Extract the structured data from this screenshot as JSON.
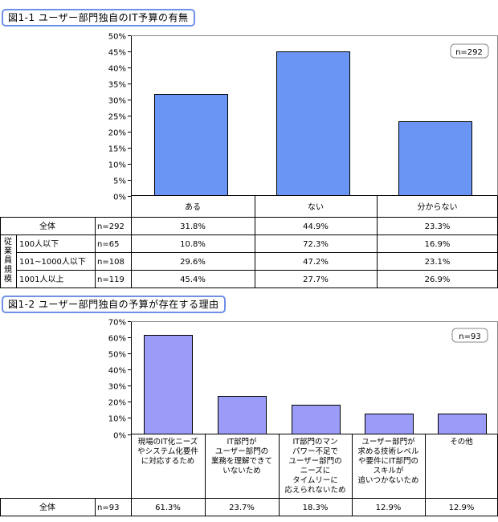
{
  "chart1": {
    "title": "図1-1 ユーザー部門独自のIT予算の有無",
    "n_label": "n=292",
    "yticks": [
      "0%",
      "5%",
      "10%",
      "15%",
      "20%",
      "25%",
      "30%",
      "35%",
      "40%",
      "45%",
      "50%"
    ],
    "table": {
      "group_label": "従業員規模",
      "rows": [
        {
          "label": "全体",
          "n": "n=292",
          "values": [
            "31.8%",
            "44.9%",
            "23.3%"
          ]
        },
        {
          "label": "100人以下",
          "n": "n=65",
          "values": [
            "10.8%",
            "72.3%",
            "16.9%"
          ]
        },
        {
          "label": "101~1000人以下",
          "n": "n=108",
          "values": [
            "29.6%",
            "47.2%",
            "23.1%"
          ]
        },
        {
          "label": "1001人以上",
          "n": "n=119",
          "values": [
            "45.4%",
            "27.7%",
            "26.9%"
          ]
        }
      ]
    },
    "colors": {
      "bar": "#6a95f4",
      "title_border": "#6f8fe8"
    }
  },
  "chart2": {
    "title": "図1-2 ユーザー部門独自の予算が存在する理由",
    "n_label": "n=93",
    "yticks": [
      "0%",
      "10%",
      "20%",
      "30%",
      "40%",
      "50%",
      "60%",
      "70%"
    ],
    "category_lines": [
      [
        "現場のIT化ニーズ",
        "やシステム化要件",
        "に対応するため"
      ],
      [
        "IT部門が",
        "ユーザー部門の",
        "業務を理解できて",
        "いないため"
      ],
      [
        "IT部門のマン",
        "パワー不足で",
        "ユーザー部門の",
        "ニーズに",
        "タイムリーに",
        "応えられないため"
      ],
      [
        "ユーザー部門が",
        "求める技術レベル",
        "や要件にIT部門の",
        "スキルが",
        "追いつかないため"
      ],
      [
        "その他"
      ]
    ],
    "table": {
      "rows": [
        {
          "label": "全体",
          "n": "n=93",
          "values": [
            "61.3%",
            "23.7%",
            "18.3%",
            "12.9%",
            "12.9%"
          ]
        }
      ]
    },
    "colors": {
      "bar": "#9b9cf7",
      "title_border": "#6f8fe8"
    }
  },
  "chart_data": [
    {
      "type": "bar",
      "title": "図1-1 ユーザー部門独自のIT予算の有無",
      "categories": [
        "ある",
        "ない",
        "分からない"
      ],
      "values": [
        31.8,
        44.9,
        23.3
      ],
      "ylim": [
        0,
        50
      ],
      "ytick_step": 5,
      "grid": false,
      "legend": "none",
      "annotation": "n=292",
      "color": "#6a95f4"
    },
    {
      "type": "bar",
      "title": "図1-2 ユーザー部門独自の予算が存在する理由",
      "categories": [
        "現場のIT化ニーズやシステム化要件に対応するため",
        "IT部門がユーザー部門の業務を理解できていないため",
        "IT部門のマンパワー不足でユーザー部門のニーズにタイムリーに応えられないため",
        "ユーザー部門が求める技術レベルや要件にIT部門のスキルが追いつかないため",
        "その他"
      ],
      "values": [
        61.3,
        23.7,
        18.3,
        12.9,
        12.9
      ],
      "ylim": [
        0,
        70
      ],
      "ytick_step": 10,
      "grid": false,
      "legend": "none",
      "annotation": "n=93",
      "color": "#9b9cf7"
    }
  ]
}
